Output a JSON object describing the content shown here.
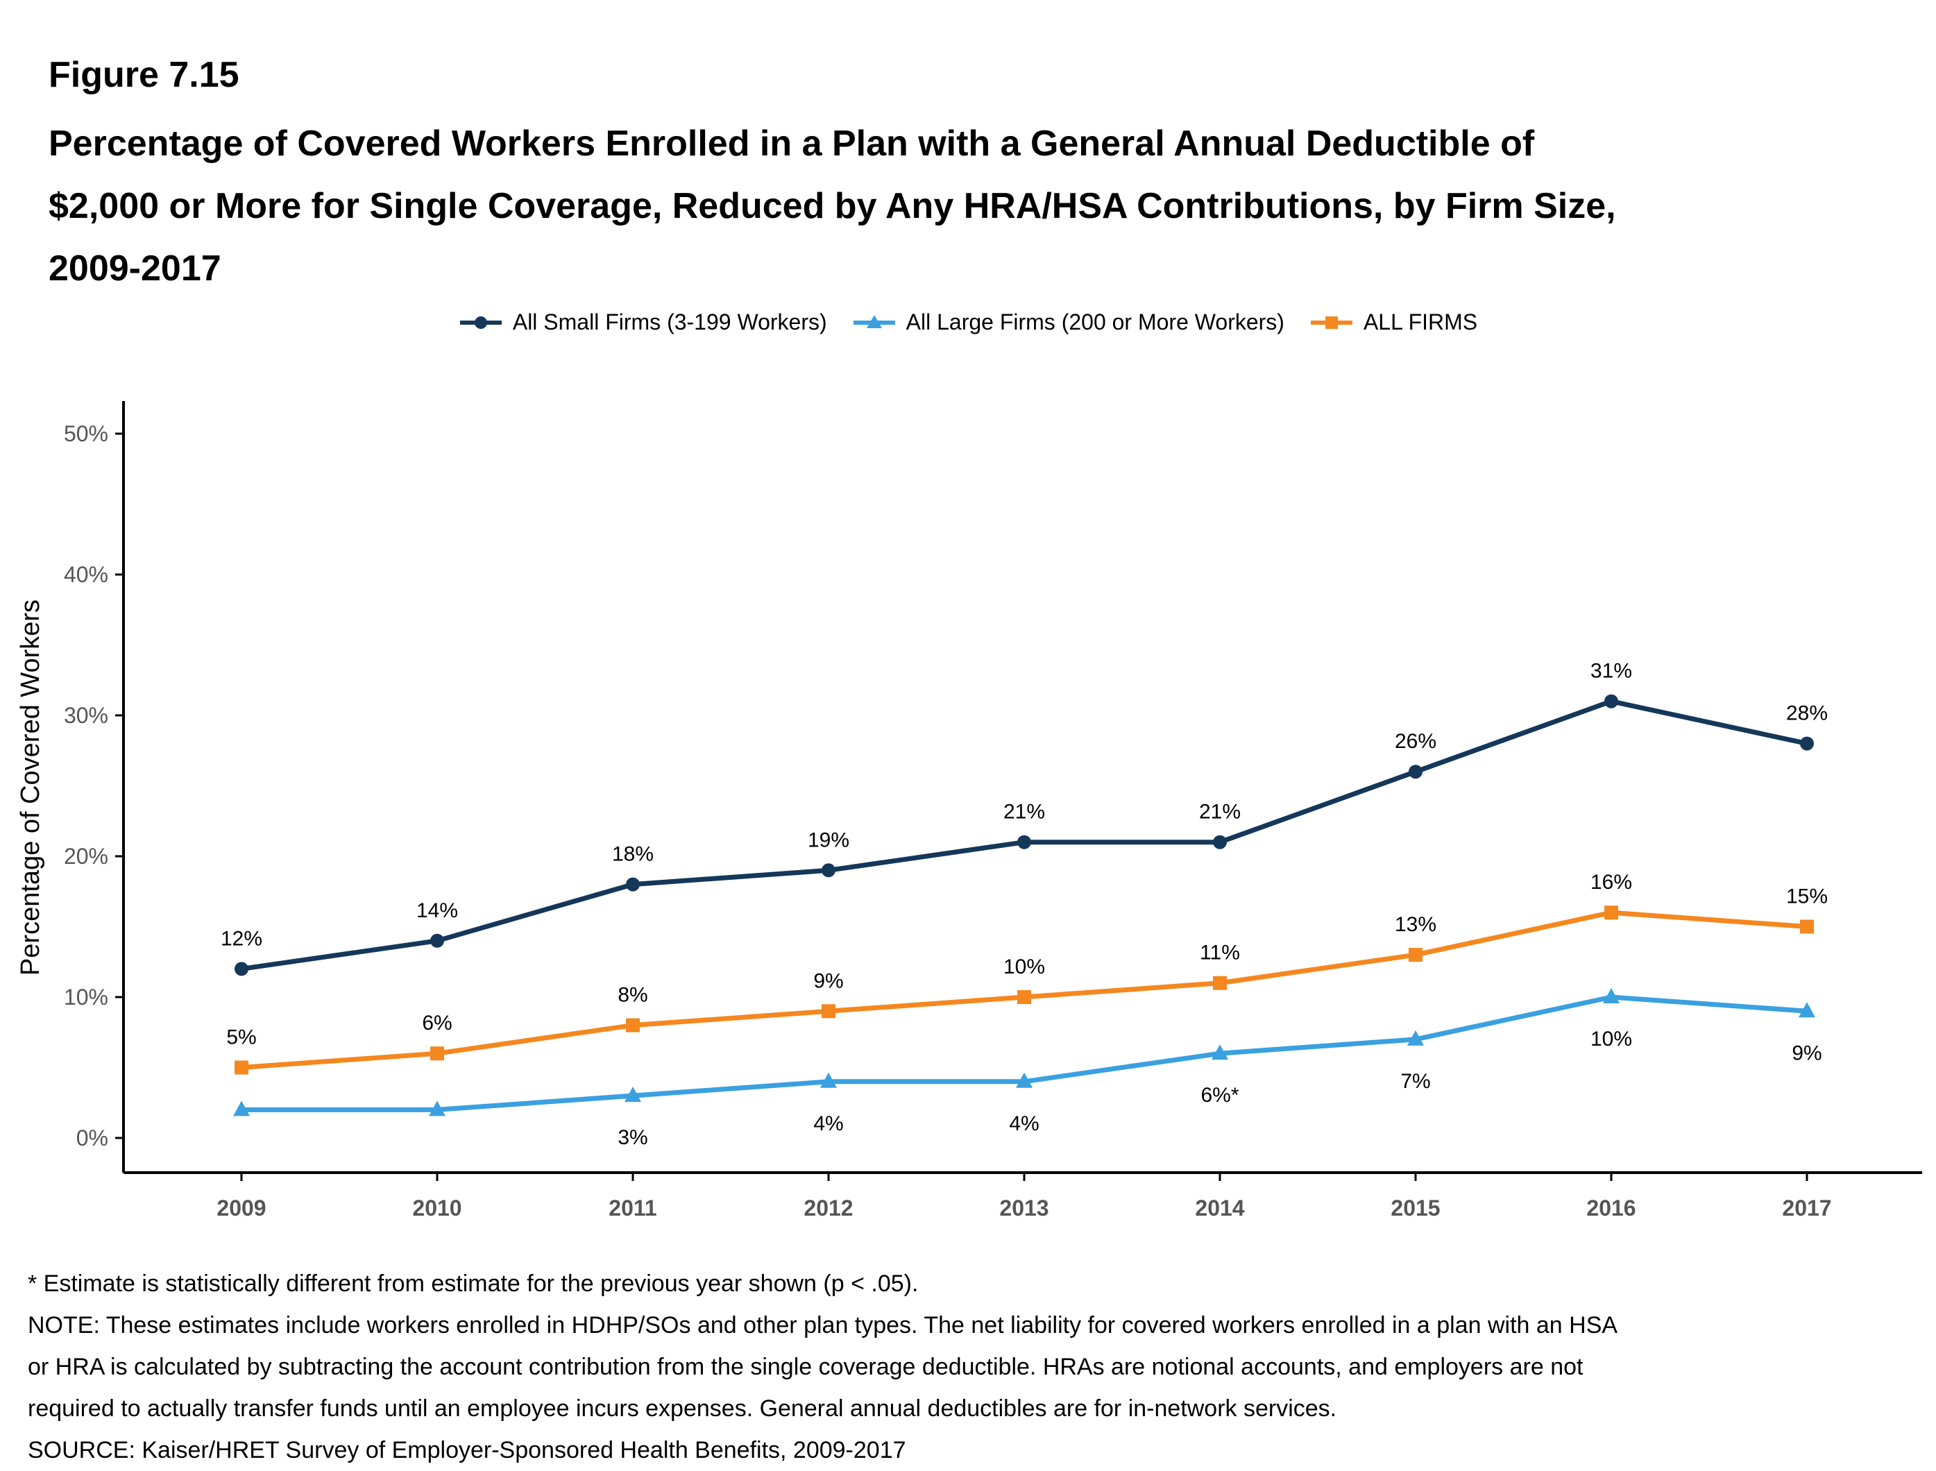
{
  "figure_label": "Figure 7.15",
  "title_lines": [
    "Percentage of Covered Workers Enrolled in a Plan with a General Annual Deductible of",
    "$2,000 or More for Single Coverage, Reduced by Any HRA/HSA Contributions, by Firm Size,",
    "2009-2017"
  ],
  "chart_data": {
    "type": "line",
    "x": [
      "2009",
      "2010",
      "2011",
      "2012",
      "2013",
      "2014",
      "2015",
      "2016",
      "2017"
    ],
    "ylabel": "Percentage of Covered Workers",
    "ylim": [
      0,
      50
    ],
    "yticks": [
      "0%",
      "10%",
      "20%",
      "30%",
      "40%",
      "50%"
    ],
    "grid": false,
    "legend_position": "top",
    "series": [
      {
        "name": "All Small Firms (3-199 Workers)",
        "marker": "circle",
        "color": "#14375a",
        "values": [
          12,
          14,
          18,
          19,
          21,
          21,
          26,
          31,
          28
        ],
        "labels": [
          "12%",
          "14%",
          "18%",
          "19%",
          "21%",
          "21%",
          "26%",
          "31%",
          "28%"
        ],
        "label_position": "above"
      },
      {
        "name": "All Large Firms (200 or More Workers)",
        "marker": "triangle",
        "color": "#3aa0e0",
        "values": [
          2,
          2,
          3,
          4,
          4,
          6,
          7,
          10,
          9
        ],
        "labels": [
          "",
          "",
          "3%",
          "4%",
          "4%",
          "6%*",
          "7%",
          "10%",
          "9%"
        ],
        "label_position": "below"
      },
      {
        "name": "ALL FIRMS",
        "marker": "square",
        "color": "#f5871f",
        "values": [
          5,
          6,
          8,
          9,
          10,
          11,
          13,
          16,
          15
        ],
        "labels": [
          "5%",
          "6%",
          "8%",
          "9%",
          "10%",
          "11%",
          "13%",
          "16%",
          "15%"
        ],
        "label_position": "above"
      }
    ]
  },
  "notes": [
    "* Estimate is statistically different from estimate for the previous year shown (p < .05).",
    "NOTE: These estimates include workers enrolled in HDHP/SOs and other plan types. The net liability for covered workers enrolled in a plan with an HSA",
    "or HRA is calculated by subtracting the account contribution from the single coverage deductible. HRAs are notional accounts, and employers are not",
    "required to actually transfer funds until an employee incurs expenses. General annual deductibles are for in-network services.",
    "SOURCE: Kaiser/HRET Survey of Employer-Sponsored Health Benefits, 2009-2017"
  ]
}
